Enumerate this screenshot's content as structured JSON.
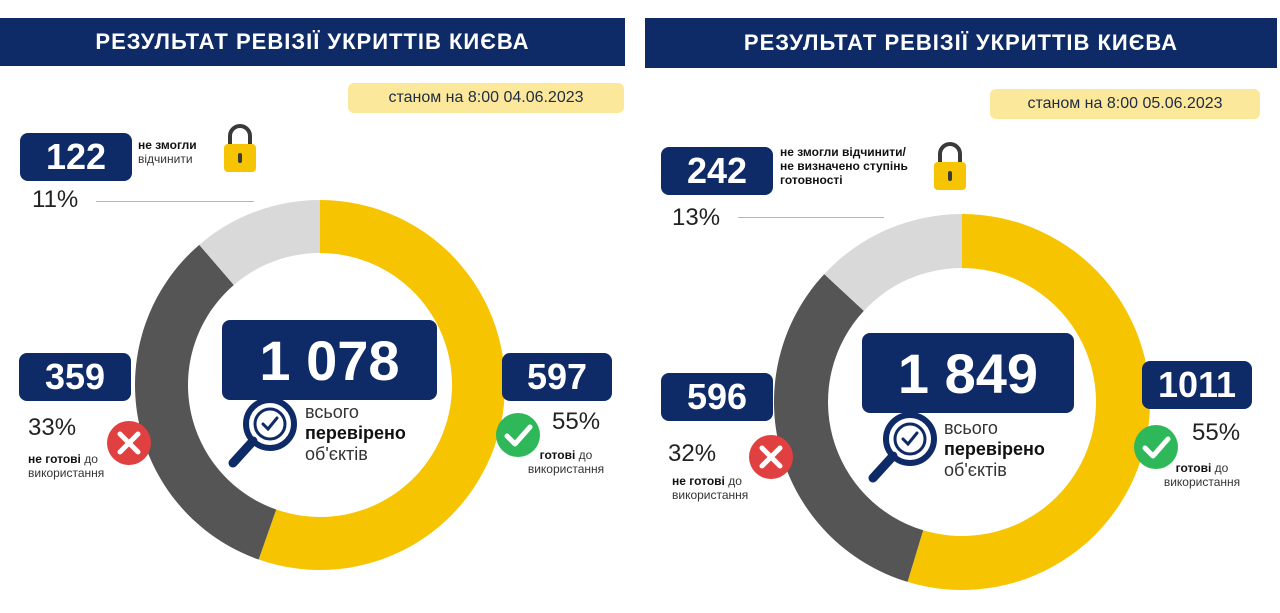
{
  "panels": [
    {
      "title": "РЕЗУЛЬТАТ РЕВІЗІЇ УКРИТТІВ КИЄВА",
      "date": "станом на 8:00 04.06.2023",
      "total": "1 078",
      "total_caption": [
        "всього",
        "перевірено",
        "об'єктів"
      ],
      "locked_value": "122",
      "locked_label_bold": "не змогли",
      "locked_label": "відчинити",
      "locked_pct": "11%",
      "notready_value": "359",
      "notready_pct": "33%",
      "notready_label_bold": "не готові",
      "notready_label_rest": "до",
      "notready_label2": "використання",
      "ready_value": "597",
      "ready_pct": "55%",
      "ready_label_bold": "готові",
      "ready_label_rest": "до",
      "ready_label2": "використання"
    },
    {
      "title": "РЕЗУЛЬТАТ РЕВІЗІЇ УКРИТТІВ КИЄВА",
      "date": "станом на 8:00 05.06.2023",
      "total": "1 849",
      "total_caption": [
        "всього",
        "перевірено",
        "об'єктів"
      ],
      "locked_value": "242",
      "locked_label_bold": "не змогли відчинити/",
      "locked_label": "не визначено ступінь",
      "locked_label3": "готовності",
      "locked_pct": "13%",
      "notready_value": "596",
      "notready_pct": "32%",
      "notready_label_bold": "не готові",
      "notready_label_rest": "до",
      "notready_label2": "використання",
      "ready_value": "1011",
      "ready_pct": "55%",
      "ready_label_bold": "готові",
      "ready_label_rest": "до",
      "ready_label2": "використання"
    }
  ],
  "colors": {
    "navy": "#0f2b67",
    "ready": "#f6c400",
    "not_ready": "#555555",
    "locked": "#d9d9d9",
    "check": "#2fb85a",
    "cross": "#e0403f"
  },
  "chart_data": [
    {
      "type": "pie",
      "title": "РЕЗУЛЬТАТ РЕВІЗІЇ УКРИТТІВ КИЄВА",
      "subtitle": "станом на 8:00 04.06.2023",
      "categories": [
        "готові до використання",
        "не готові до використання",
        "не змогли відчинити"
      ],
      "values": [
        597,
        359,
        122
      ],
      "percentages": [
        55,
        33,
        11
      ],
      "total": 1078
    },
    {
      "type": "pie",
      "title": "РЕЗУЛЬТАТ РЕВІЗІЇ УКРИТТІВ КИЄВА",
      "subtitle": "станом на 8:00 05.06.2023",
      "categories": [
        "готові до використання",
        "не готові до використання",
        "не змогли відчинити/не визначено ступінь готовності"
      ],
      "values": [
        1011,
        596,
        242
      ],
      "percentages": [
        55,
        32,
        13
      ],
      "total": 1849
    }
  ]
}
